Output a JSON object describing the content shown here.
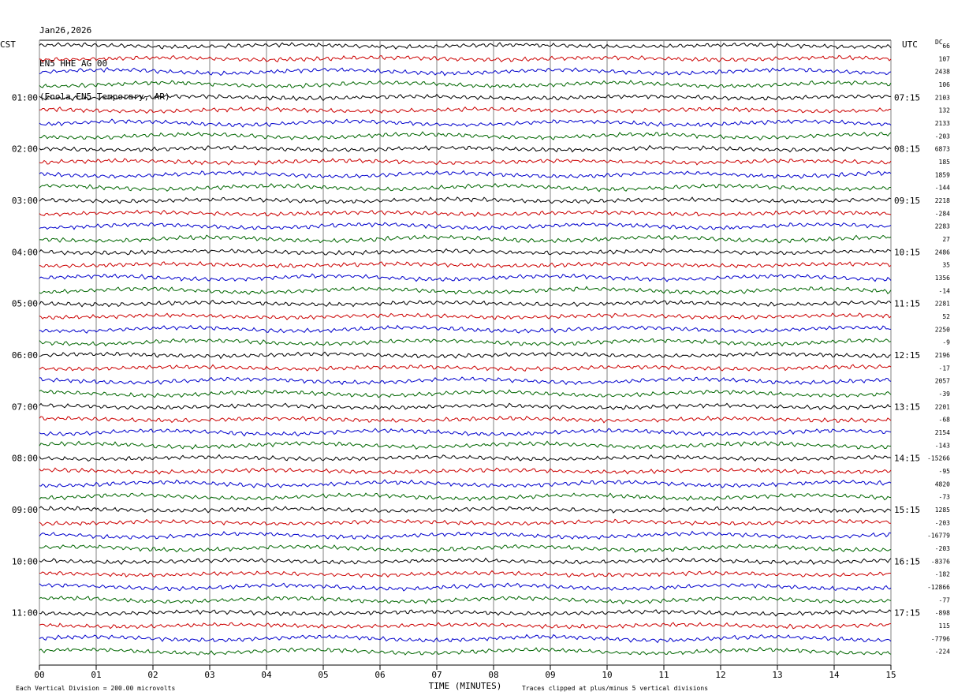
{
  "header": {
    "date": "Jan26,2026",
    "station": "EN5 HHE AG 00",
    "location": "(Enola EN5 Temporary, AR)"
  },
  "left_tz": "CST",
  "right_tz": "UTC",
  "dc_label": "DC",
  "left_hours": [
    "01:00",
    "02:00",
    "03:00",
    "04:00",
    "05:00",
    "06:00",
    "07:00",
    "08:00",
    "09:00",
    "10:00",
    "11:00"
  ],
  "right_hours": [
    "07:15",
    "08:15",
    "09:15",
    "10:15",
    "11:15",
    "12:15",
    "13:15",
    "14:15",
    "15:15",
    "16:15",
    "17:15"
  ],
  "dc_offsets": [
    "66",
    "107",
    "2438",
    "106",
    "2103",
    "132",
    "2133",
    "-203",
    "6873",
    "185",
    "1859",
    "-144",
    "2218",
    "-284",
    "2283",
    "27",
    "2486",
    "35",
    "1356",
    "-14",
    "2281",
    "52",
    "2250",
    "-9",
    "2196",
    "-17",
    "2057",
    "-39",
    "2201",
    "-68",
    "2154",
    "-143",
    "-15266",
    "-95",
    "4820",
    "-73",
    "1285",
    "-203",
    "-16779",
    "-203",
    "-8376",
    "-182",
    "-12866",
    "-77",
    "-898",
    "115",
    "-7796",
    "-224"
  ],
  "footer": {
    "scale_note": "Each Vertical Division =  200.00 microvolts",
    "clip_note": "Traces clipped at plus/minus 5 vertical divisions"
  },
  "colors": {
    "trace_cycle": [
      "#000000",
      "#cc0000",
      "#0000cc",
      "#006600"
    ],
    "grid": "#808080"
  },
  "chart_data": {
    "type": "line",
    "title": "",
    "xlabel": "TIME (MINUTES)",
    "x_ticks": [
      "00",
      "01",
      "02",
      "03",
      "04",
      "05",
      "06",
      "07",
      "08",
      "09",
      "10",
      "11",
      "12",
      "13",
      "14",
      "15"
    ],
    "xlim": [
      0,
      15
    ],
    "trace_count": 48,
    "trace_interval_minutes": 15,
    "grid": true,
    "series_note": "seismic helicorder traces, colors cycle black/red/blue/green"
  }
}
